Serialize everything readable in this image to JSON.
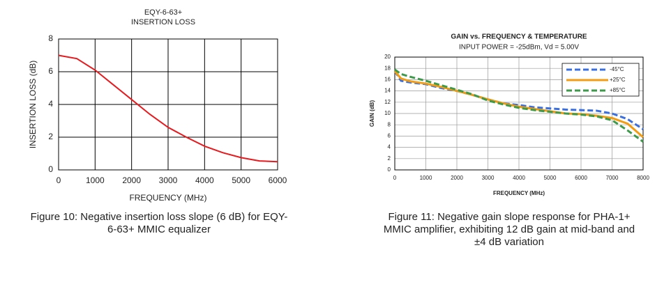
{
  "chart_data": [
    {
      "type": "line",
      "title": [
        "EQY-6-63+",
        "INSERTION LOSS"
      ],
      "xlabel": "FREQUENCY (MHz)",
      "ylabel": "INSERTION LOSS (dB)",
      "xlim": [
        0,
        6000
      ],
      "xticks": [
        0,
        1000,
        2000,
        3000,
        4000,
        5000,
        6000
      ],
      "ylim": [
        0,
        8
      ],
      "yticks": [
        0,
        2,
        4,
        6,
        8
      ],
      "grid": true,
      "x": [
        0,
        500,
        1000,
        1500,
        2000,
        2500,
        3000,
        3500,
        4000,
        4500,
        5000,
        5500,
        6000
      ],
      "series": [
        {
          "color": "#e8191d",
          "style": "solid",
          "values": [
            7.0,
            6.8,
            6.1,
            5.2,
            4.3,
            3.4,
            2.6,
            2.0,
            1.45,
            1.05,
            0.75,
            0.55,
            0.5
          ]
        }
      ],
      "caption": [
        "Figure 10: Negative insertion loss slope (6 dB) for EQY-",
        "6-63+ MMIC equalizer"
      ]
    },
    {
      "type": "line",
      "title": [
        "GAIN vs. FREQUENCY & TEMPERATURE"
      ],
      "subtitle": "INPUT POWER = -25dBm, Vd = 5.00V",
      "xlabel": "FREQUENCY (MHz)",
      "ylabel": "GAIN (dB)",
      "xlim": [
        0,
        8000
      ],
      "xticks": [
        0,
        1000,
        2000,
        3000,
        4000,
        5000,
        6000,
        7000,
        8000
      ],
      "ylim": [
        0,
        20
      ],
      "yticks": [
        0,
        2,
        4,
        6,
        8,
        10,
        12,
        14,
        16,
        18,
        20
      ],
      "grid": true,
      "legend": "upper right",
      "x": [
        0,
        200,
        500,
        1000,
        1500,
        2000,
        2500,
        3000,
        3500,
        4000,
        4500,
        5000,
        5500,
        6000,
        6500,
        7000,
        7500,
        8000
      ],
      "series": [
        {
          "name": "-45°C",
          "color": "#3a6fe0",
          "style": "dashed",
          "values": [
            17.5,
            15.8,
            15.5,
            15.2,
            14.5,
            14.0,
            13.3,
            12.5,
            11.8,
            11.5,
            11.1,
            10.9,
            10.7,
            10.6,
            10.5,
            10.0,
            9.0,
            7.2
          ]
        },
        {
          "name": "+25°C",
          "color": "#f39c12",
          "style": "solid",
          "values": [
            17.5,
            16.2,
            15.7,
            15.3,
            14.7,
            14.0,
            13.3,
            12.5,
            11.8,
            11.2,
            10.8,
            10.4,
            10.0,
            9.9,
            9.6,
            9.2,
            8.2,
            5.8
          ]
        },
        {
          "name": "+85°C",
          "color": "#3d9a4a",
          "style": "dashed",
          "values": [
            17.8,
            17.0,
            16.5,
            15.8,
            15.0,
            14.2,
            13.4,
            12.3,
            11.6,
            11.0,
            10.6,
            10.3,
            10.0,
            9.8,
            9.5,
            8.8,
            7.0,
            5.0
          ]
        }
      ],
      "caption": [
        "Figure 11: Negative gain slope response for PHA-1+",
        "MMIC amplifier, exhibiting 12 dB gain at mid-band and",
        "±4 dB variation"
      ]
    }
  ]
}
